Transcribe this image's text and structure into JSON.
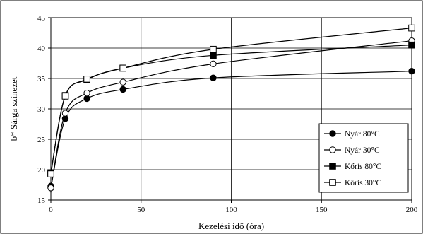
{
  "chart_data": {
    "type": "line",
    "xlabel": "Kezelési idő (óra)",
    "ylabel": "b* Sárga színezet",
    "xlim": [
      0,
      200
    ],
    "ylim": [
      15,
      45
    ],
    "x_ticks": [
      0,
      50,
      100,
      150,
      200
    ],
    "y_ticks": [
      15,
      20,
      25,
      30,
      35,
      40,
      45
    ],
    "grid": true,
    "legend_position": "bottom-right",
    "series": [
      {
        "name": "Nyár 80°C",
        "marker": "filled-circle",
        "x": [
          0,
          0,
          8,
          20,
          40,
          90,
          200
        ],
        "y": [
          17.3,
          17.0,
          28.4,
          31.7,
          33.2,
          35.1,
          36.2
        ]
      },
      {
        "name": "Nyár 30°C",
        "marker": "open-circle",
        "x": [
          0,
          8,
          20,
          40,
          90,
          200
        ],
        "y": [
          17.0,
          29.3,
          32.6,
          34.4,
          37.4,
          41.2
        ]
      },
      {
        "name": "Kőris 80°C",
        "marker": "filled-square",
        "x": [
          0,
          8,
          20,
          40,
          90,
          200
        ],
        "y": [
          19.5,
          32.2,
          34.8,
          36.7,
          38.8,
          40.5
        ]
      },
      {
        "name": "Kőris 30°C",
        "marker": "open-square",
        "x": [
          0,
          8,
          20,
          40,
          90,
          200
        ],
        "y": [
          19.3,
          32.1,
          34.9,
          36.7,
          39.8,
          43.3
        ]
      }
    ]
  }
}
